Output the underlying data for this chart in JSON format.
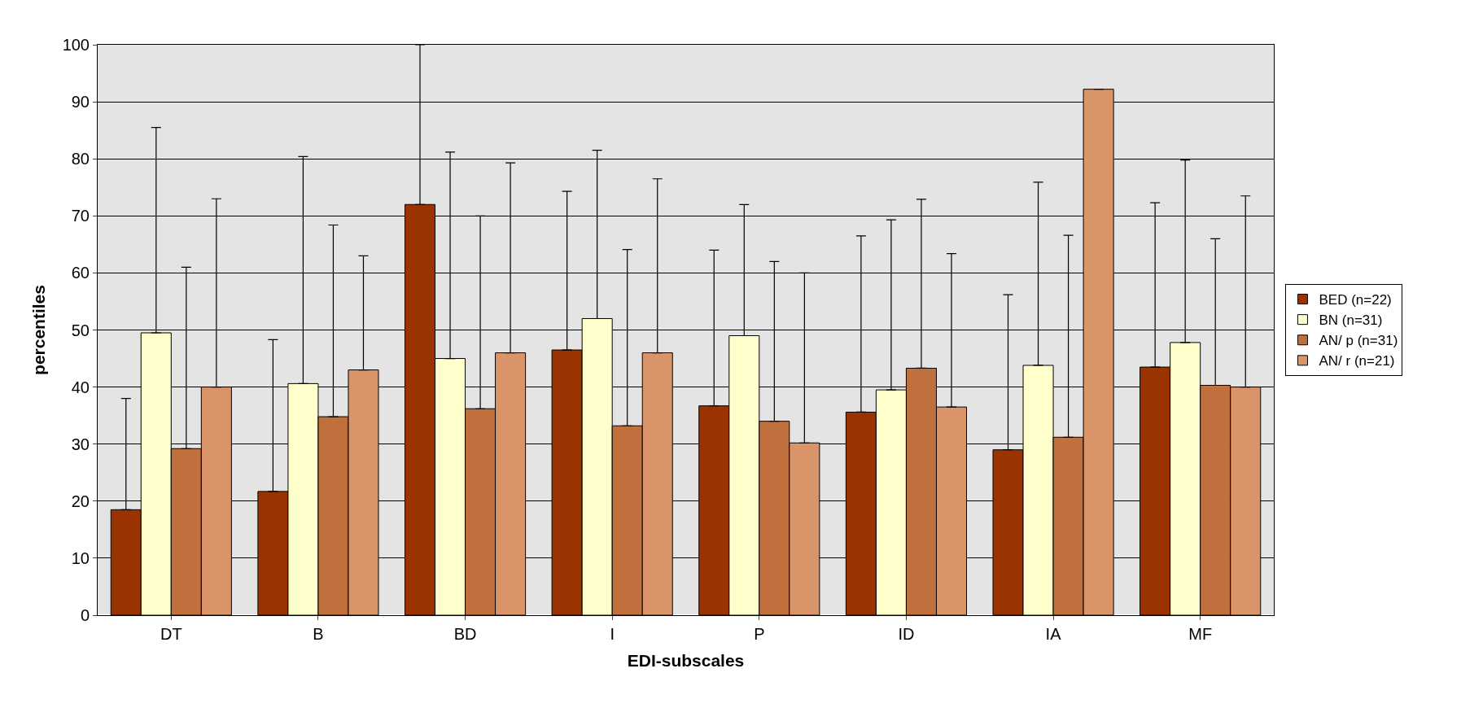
{
  "chart_data": {
    "type": "bar",
    "xlabel": "EDI-subscales",
    "ylabel": "percentiles",
    "categories": [
      "DT",
      "B",
      "BD",
      "I",
      "P",
      "ID",
      "IA",
      "MF"
    ],
    "series": [
      {
        "name": "BED (n=22)",
        "color": "#993300",
        "values": [
          18.5,
          21.7,
          72,
          46.5,
          36.7,
          35.6,
          29,
          43.5
        ],
        "errors": [
          [
            18.5,
            38
          ],
          [
            21.7,
            48.3
          ],
          [
            72,
            100
          ],
          [
            46.5,
            74.3
          ],
          [
            36.7,
            64
          ],
          [
            35.6,
            66.5
          ],
          [
            29,
            56.2
          ],
          [
            43.5,
            72.3
          ]
        ]
      },
      {
        "name": "BN (n=31)",
        "color": "#ffffcc",
        "values": [
          49.5,
          40.6,
          45,
          52,
          49,
          39.5,
          43.8,
          47.8
        ],
        "errors": [
          [
            49.5,
            85.5
          ],
          [
            40.6,
            80.4
          ],
          [
            45,
            81.2
          ],
          [
            52,
            81.5
          ],
          [
            49,
            72
          ],
          [
            39.5,
            69.3
          ],
          [
            43.8,
            75.9
          ],
          [
            47.8,
            79.8
          ]
        ]
      },
      {
        "name": "AN/ p (n=31)",
        "color": "#c0703c",
        "values": [
          29.2,
          34.8,
          36.2,
          33.2,
          34,
          43.3,
          31.2,
          40.3
        ],
        "errors": [
          [
            29.2,
            61
          ],
          [
            34.8,
            68.4
          ],
          [
            36.2,
            70
          ],
          [
            33.2,
            64.1
          ],
          [
            34,
            62
          ],
          [
            43.3,
            72.9
          ],
          [
            31.2,
            66.6
          ],
          [
            40.3,
            66
          ]
        ]
      },
      {
        "name": "AN/ r (n=21)",
        "color": "#d9946a",
        "values": [
          40,
          43,
          46,
          46,
          30.2,
          36.5,
          92.2,
          40
        ],
        "errors": [
          [
            40,
            73
          ],
          [
            43,
            63
          ],
          [
            46,
            79.3
          ],
          [
            46,
            76.5
          ],
          [
            30.2,
            60
          ],
          [
            36.5,
            63.4
          ],
          null,
          [
            40,
            73.5
          ]
        ]
      }
    ],
    "ylim": [
      0,
      100
    ],
    "yticks": [
      0,
      10,
      20,
      30,
      40,
      50,
      60,
      70,
      80,
      90,
      100
    ],
    "grid": "y",
    "legend": "right"
  }
}
